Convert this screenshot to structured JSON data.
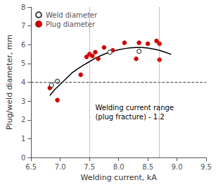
{
  "chart_data": {
    "type": "scatter",
    "xlabel": "Welding current, kA",
    "ylabel": "Plug/weld diameter, mm",
    "series": [
      {
        "name": "Weld diameter",
        "type": "scatter",
        "marker": "open_circle",
        "color": "#444444",
        "x": [
          6.85,
          6.95,
          7.85,
          8.35
        ],
        "values": [
          3.85,
          4.05,
          5.6,
          5.65
        ]
      },
      {
        "name": "Plug diameter",
        "type": "scatter",
        "marker": "circle",
        "color": "#cc0000",
        "x": [
          6.82,
          6.95,
          7.35,
          7.45,
          7.5,
          7.55,
          7.6,
          7.65,
          7.75,
          7.9,
          8.1,
          8.3,
          8.35,
          8.5,
          8.65,
          8.7,
          8.7
        ],
        "values": [
          3.7,
          3.05,
          4.4,
          5.35,
          5.5,
          5.4,
          5.6,
          5.25,
          5.85,
          5.7,
          6.1,
          5.25,
          6.1,
          6.05,
          6.2,
          6.05,
          5.2
        ]
      },
      {
        "type": "line",
        "color": "black",
        "line_style": "solid",
        "x": [
          6.82,
          6.9,
          7.0,
          7.1,
          7.2,
          7.3,
          7.4,
          7.5,
          7.6,
          7.7,
          7.8,
          7.9,
          8.0,
          8.1,
          8.2,
          8.3,
          8.4,
          8.5,
          8.6,
          8.7,
          8.8,
          8.9
        ],
        "values": [
          3.3,
          3.6,
          3.9,
          4.2,
          4.5,
          4.72,
          4.92,
          5.1,
          5.28,
          5.43,
          5.55,
          5.65,
          5.73,
          5.79,
          5.83,
          5.85,
          5.85,
          5.82,
          5.77,
          5.7,
          5.6,
          5.48
        ]
      }
    ],
    "reference_lines": [
      {
        "axis": "y",
        "value": 4.0,
        "color": "#444444",
        "line_style": "dashed"
      },
      {
        "axis": "x",
        "value": 7.5,
        "color": "#888888",
        "line_style": "dotted"
      },
      {
        "axis": "x",
        "value": 8.7,
        "color": "#888888",
        "line_style": "dotted"
      }
    ],
    "annotations": [
      {
        "text": "Welding current range\n(plug fracture) - 1.2",
        "x": 7.6,
        "y": 2.9
      }
    ],
    "xlim": [
      6.5,
      9.5
    ],
    "ylim": [
      0,
      8
    ],
    "xticks": [
      6.5,
      {
        "value": 7.0,
        "label": "7.0"
      },
      7.5,
      {
        "value": 8.0,
        "label": "8.0"
      },
      8.5,
      {
        "value": 9.0,
        "label": "9.0"
      },
      9.5
    ],
    "yticks": [
      0,
      1,
      2,
      3,
      4,
      5,
      6,
      7,
      8
    ],
    "legend": "upper left",
    "grid": false
  }
}
